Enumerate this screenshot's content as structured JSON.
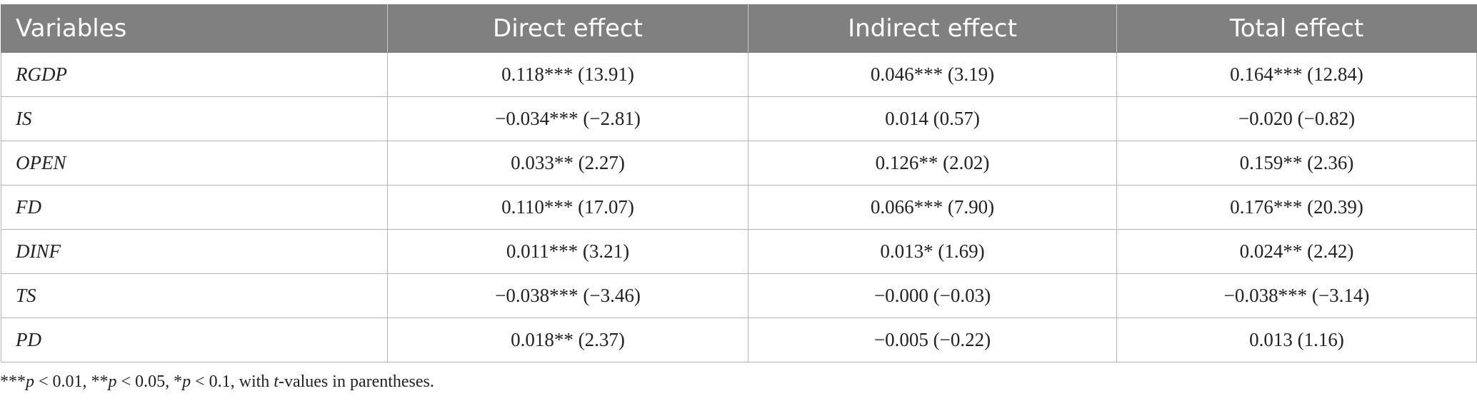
{
  "table": {
    "headers": [
      "Variables",
      "Direct effect",
      "Indirect effect",
      "Total effect"
    ],
    "rows": [
      {
        "variable": "RGDP",
        "direct": "0.118*** (13.91)",
        "indirect": "0.046*** (3.19)",
        "total": "0.164*** (12.84)"
      },
      {
        "variable": "IS",
        "direct": "−0.034*** (−2.81)",
        "indirect": "0.014 (0.57)",
        "total": "−0.020 (−0.82)"
      },
      {
        "variable": "OPEN",
        "direct": "0.033** (2.27)",
        "indirect": "0.126** (2.02)",
        "total": "0.159** (2.36)"
      },
      {
        "variable": "FD",
        "direct": "0.110*** (17.07)",
        "indirect": "0.066*** (7.90)",
        "total": "0.176*** (20.39)"
      },
      {
        "variable": "DINF",
        "direct": "0.011*** (3.21)",
        "indirect": "0.013* (1.69)",
        "total": "0.024** (2.42)"
      },
      {
        "variable": "TS",
        "direct": "−0.038*** (−3.46)",
        "indirect": "−0.000 (−0.03)",
        "total": "−0.038*** (−3.14)"
      },
      {
        "variable": "PD",
        "direct": "0.018** (2.37)",
        "indirect": "−0.005 (−0.22)",
        "total": "0.013 (1.16)"
      }
    ]
  },
  "note": {
    "stars3": "***",
    "p1": "p",
    "t1": " < 0.01, **",
    "p2": "p",
    "t2": " < 0.05, *",
    "p3": "p",
    "t3": " < 0.1, with ",
    "tv": "t",
    "t4": "-values in parentheses."
  }
}
